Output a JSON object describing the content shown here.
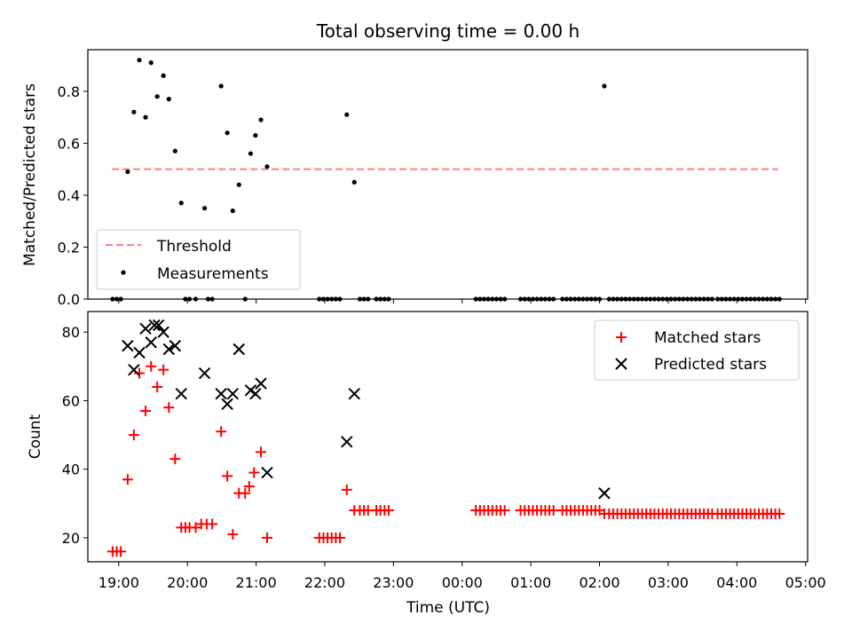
{
  "chart_data": [
    {
      "type": "scatter",
      "title": "Total observing time = 0.00 h",
      "ylabel": "Matched/Predicted stars",
      "xlabel": "",
      "xlim": [
        18.55,
        29.03
      ],
      "ylim": [
        0.0,
        0.96
      ],
      "yticks": [
        0.0,
        0.2,
        0.4,
        0.6,
        0.8
      ],
      "ytick_labels": [
        "0.0",
        "0.2",
        "0.4",
        "0.6",
        "0.8"
      ],
      "legend_position": "lower-left",
      "threshold": {
        "name": "Threshold",
        "y": 0.5,
        "x_range": [
          18.9,
          28.6
        ],
        "color": "#ff7f7f",
        "style": "dashed"
      },
      "series": [
        {
          "name": "Measurements",
          "color": "#000000",
          "marker": "dot",
          "points": [
            [
              18.91,
              0.0
            ],
            [
              18.97,
              0.0
            ],
            [
              19.03,
              0.0
            ],
            [
              19.13,
              0.49
            ],
            [
              19.22,
              0.72
            ],
            [
              19.3,
              0.92
            ],
            [
              19.39,
              0.7
            ],
            [
              19.47,
              0.91
            ],
            [
              19.56,
              0.78
            ],
            [
              19.65,
              0.86
            ],
            [
              19.73,
              0.77
            ],
            [
              19.82,
              0.57
            ],
            [
              19.91,
              0.37
            ],
            [
              19.97,
              0.0
            ],
            [
              20.03,
              0.0
            ],
            [
              20.12,
              0.0
            ],
            [
              20.25,
              0.35
            ],
            [
              20.3,
              0.0
            ],
            [
              20.36,
              0.0
            ],
            [
              20.49,
              0.82
            ],
            [
              20.58,
              0.64
            ],
            [
              20.66,
              0.34
            ],
            [
              20.75,
              0.44
            ],
            [
              20.84,
              0.0
            ],
            [
              20.92,
              0.56
            ],
            [
              20.99,
              0.63
            ],
            [
              21.07,
              0.69
            ],
            [
              21.16,
              0.51
            ],
            [
              21.92,
              0.0
            ],
            [
              21.98,
              0.0
            ],
            [
              22.04,
              0.0
            ],
            [
              22.1,
              0.0
            ],
            [
              22.16,
              0.0
            ],
            [
              22.22,
              0.0
            ],
            [
              22.32,
              0.71
            ],
            [
              22.43,
              0.45
            ],
            [
              22.51,
              0.0
            ],
            [
              22.57,
              0.0
            ],
            [
              22.63,
              0.0
            ],
            [
              22.75,
              0.0
            ],
            [
              22.81,
              0.0
            ],
            [
              22.87,
              0.0
            ],
            [
              22.93,
              0.0
            ],
            [
              24.2,
              0.0
            ],
            [
              24.26,
              0.0
            ],
            [
              24.32,
              0.0
            ],
            [
              24.38,
              0.0
            ],
            [
              24.44,
              0.0
            ],
            [
              24.5,
              0.0
            ],
            [
              24.56,
              0.0
            ],
            [
              24.62,
              0.0
            ],
            [
              24.85,
              0.0
            ],
            [
              24.91,
              0.0
            ],
            [
              24.97,
              0.0
            ],
            [
              25.03,
              0.0
            ],
            [
              25.09,
              0.0
            ],
            [
              25.15,
              0.0
            ],
            [
              25.21,
              0.0
            ],
            [
              25.27,
              0.0
            ],
            [
              25.33,
              0.0
            ],
            [
              25.46,
              0.0
            ],
            [
              25.52,
              0.0
            ],
            [
              25.58,
              0.0
            ],
            [
              25.64,
              0.0
            ],
            [
              25.7,
              0.0
            ],
            [
              25.76,
              0.0
            ],
            [
              25.82,
              0.0
            ],
            [
              25.88,
              0.0
            ],
            [
              25.94,
              0.0
            ],
            [
              26.0,
              0.0
            ],
            [
              26.07,
              0.82
            ],
            [
              26.14,
              0.0
            ],
            [
              26.2,
              0.0
            ],
            [
              26.26,
              0.0
            ],
            [
              26.32,
              0.0
            ],
            [
              26.38,
              0.0
            ],
            [
              26.44,
              0.0
            ],
            [
              26.5,
              0.0
            ],
            [
              26.56,
              0.0
            ],
            [
              26.62,
              0.0
            ],
            [
              26.68,
              0.0
            ],
            [
              26.74,
              0.0
            ],
            [
              26.8,
              0.0
            ],
            [
              26.86,
              0.0
            ],
            [
              26.92,
              0.0
            ],
            [
              26.98,
              0.0
            ],
            [
              27.04,
              0.0
            ],
            [
              27.1,
              0.0
            ],
            [
              27.16,
              0.0
            ],
            [
              27.22,
              0.0
            ],
            [
              27.28,
              0.0
            ],
            [
              27.34,
              0.0
            ],
            [
              27.4,
              0.0
            ],
            [
              27.46,
              0.0
            ],
            [
              27.52,
              0.0
            ],
            [
              27.58,
              0.0
            ],
            [
              27.64,
              0.0
            ],
            [
              27.72,
              0.0
            ],
            [
              27.78,
              0.0
            ],
            [
              27.84,
              0.0
            ],
            [
              27.9,
              0.0
            ],
            [
              27.96,
              0.0
            ],
            [
              28.02,
              0.0
            ],
            [
              28.08,
              0.0
            ],
            [
              28.14,
              0.0
            ],
            [
              28.2,
              0.0
            ],
            [
              28.26,
              0.0
            ],
            [
              28.32,
              0.0
            ],
            [
              28.38,
              0.0
            ],
            [
              28.44,
              0.0
            ],
            [
              28.5,
              0.0
            ],
            [
              28.56,
              0.0
            ],
            [
              28.62,
              0.0
            ]
          ]
        }
      ],
      "grid": false
    },
    {
      "type": "scatter",
      "title": "",
      "xlabel": "Time (UTC)",
      "ylabel": "Count",
      "xlim": [
        18.55,
        29.03
      ],
      "ylim": [
        13,
        86
      ],
      "yticks": [
        20,
        40,
        60,
        80
      ],
      "ytick_labels": [
        "20",
        "40",
        "60",
        "80"
      ],
      "xticks": [
        19,
        20,
        21,
        22,
        23,
        24,
        25,
        26,
        27,
        28,
        29
      ],
      "xtick_labels": [
        "19:00",
        "20:00",
        "21:00",
        "22:00",
        "23:00",
        "00:00",
        "01:00",
        "02:00",
        "03:00",
        "04:00",
        "05:00"
      ],
      "legend_position": "top-right",
      "series": [
        {
          "name": "Matched stars",
          "color": "#ff0000",
          "marker": "plus",
          "points": [
            [
              18.91,
              16
            ],
            [
              18.97,
              16
            ],
            [
              19.03,
              16
            ],
            [
              19.13,
              37
            ],
            [
              19.22,
              50
            ],
            [
              19.3,
              68
            ],
            [
              19.39,
              57
            ],
            [
              19.47,
              70
            ],
            [
              19.56,
              64
            ],
            [
              19.65,
              69
            ],
            [
              19.73,
              58
            ],
            [
              19.82,
              43
            ],
            [
              19.91,
              23
            ],
            [
              19.97,
              23
            ],
            [
              20.03,
              23
            ],
            [
              20.12,
              23
            ],
            [
              20.2,
              24
            ],
            [
              20.28,
              24
            ],
            [
              20.36,
              24
            ],
            [
              20.49,
              51
            ],
            [
              20.58,
              38
            ],
            [
              20.66,
              21
            ],
            [
              20.75,
              33
            ],
            [
              20.84,
              33
            ],
            [
              20.9,
              35
            ],
            [
              20.97,
              39
            ],
            [
              21.07,
              45
            ],
            [
              21.16,
              20
            ],
            [
              21.92,
              20
            ],
            [
              21.98,
              20
            ],
            [
              22.04,
              20
            ],
            [
              22.1,
              20
            ],
            [
              22.16,
              20
            ],
            [
              22.22,
              20
            ],
            [
              22.32,
              34
            ],
            [
              22.43,
              28
            ],
            [
              22.51,
              28
            ],
            [
              22.57,
              28
            ],
            [
              22.63,
              28
            ],
            [
              22.75,
              28
            ],
            [
              22.81,
              28
            ],
            [
              22.87,
              28
            ],
            [
              22.93,
              28
            ],
            [
              24.2,
              28
            ],
            [
              24.26,
              28
            ],
            [
              24.32,
              28
            ],
            [
              24.38,
              28
            ],
            [
              24.44,
              28
            ],
            [
              24.5,
              28
            ],
            [
              24.56,
              28
            ],
            [
              24.62,
              28
            ],
            [
              24.85,
              28
            ],
            [
              24.91,
              28
            ],
            [
              24.97,
              28
            ],
            [
              25.03,
              28
            ],
            [
              25.09,
              28
            ],
            [
              25.15,
              28
            ],
            [
              25.21,
              28
            ],
            [
              25.27,
              28
            ],
            [
              25.33,
              28
            ],
            [
              25.46,
              28
            ],
            [
              25.52,
              28
            ],
            [
              25.58,
              28
            ],
            [
              25.64,
              28
            ],
            [
              25.7,
              28
            ],
            [
              25.76,
              28
            ],
            [
              25.82,
              28
            ],
            [
              25.88,
              28
            ],
            [
              25.94,
              28
            ],
            [
              26.0,
              28
            ],
            [
              26.07,
              27
            ],
            [
              26.14,
              27
            ],
            [
              26.2,
              27
            ],
            [
              26.26,
              27
            ],
            [
              26.32,
              27
            ],
            [
              26.38,
              27
            ],
            [
              26.44,
              27
            ],
            [
              26.5,
              27
            ],
            [
              26.56,
              27
            ],
            [
              26.62,
              27
            ],
            [
              26.68,
              27
            ],
            [
              26.74,
              27
            ],
            [
              26.8,
              27
            ],
            [
              26.86,
              27
            ],
            [
              26.92,
              27
            ],
            [
              26.98,
              27
            ],
            [
              27.04,
              27
            ],
            [
              27.1,
              27
            ],
            [
              27.16,
              27
            ],
            [
              27.22,
              27
            ],
            [
              27.28,
              27
            ],
            [
              27.34,
              27
            ],
            [
              27.4,
              27
            ],
            [
              27.46,
              27
            ],
            [
              27.52,
              27
            ],
            [
              27.58,
              27
            ],
            [
              27.64,
              27
            ],
            [
              27.72,
              27
            ],
            [
              27.78,
              27
            ],
            [
              27.84,
              27
            ],
            [
              27.9,
              27
            ],
            [
              27.96,
              27
            ],
            [
              28.02,
              27
            ],
            [
              28.08,
              27
            ],
            [
              28.14,
              27
            ],
            [
              28.2,
              27
            ],
            [
              28.26,
              27
            ],
            [
              28.32,
              27
            ],
            [
              28.38,
              27
            ],
            [
              28.44,
              27
            ],
            [
              28.5,
              27
            ],
            [
              28.56,
              27
            ],
            [
              28.62,
              27
            ]
          ]
        },
        {
          "name": "Predicted stars",
          "color": "#000000",
          "marker": "x",
          "points": [
            [
              19.13,
              76
            ],
            [
              19.22,
              69
            ],
            [
              19.3,
              74
            ],
            [
              19.39,
              81
            ],
            [
              19.47,
              77
            ],
            [
              19.52,
              82
            ],
            [
              19.58,
              82
            ],
            [
              19.65,
              80
            ],
            [
              19.73,
              75
            ],
            [
              19.82,
              76
            ],
            [
              19.91,
              62
            ],
            [
              20.25,
              68
            ],
            [
              20.49,
              62
            ],
            [
              20.58,
              59
            ],
            [
              20.66,
              62
            ],
            [
              20.75,
              75
            ],
            [
              20.92,
              63
            ],
            [
              20.99,
              62
            ],
            [
              21.07,
              65
            ],
            [
              21.16,
              39
            ],
            [
              22.32,
              48
            ],
            [
              22.43,
              62
            ],
            [
              26.07,
              33
            ]
          ]
        }
      ],
      "grid": false
    }
  ]
}
